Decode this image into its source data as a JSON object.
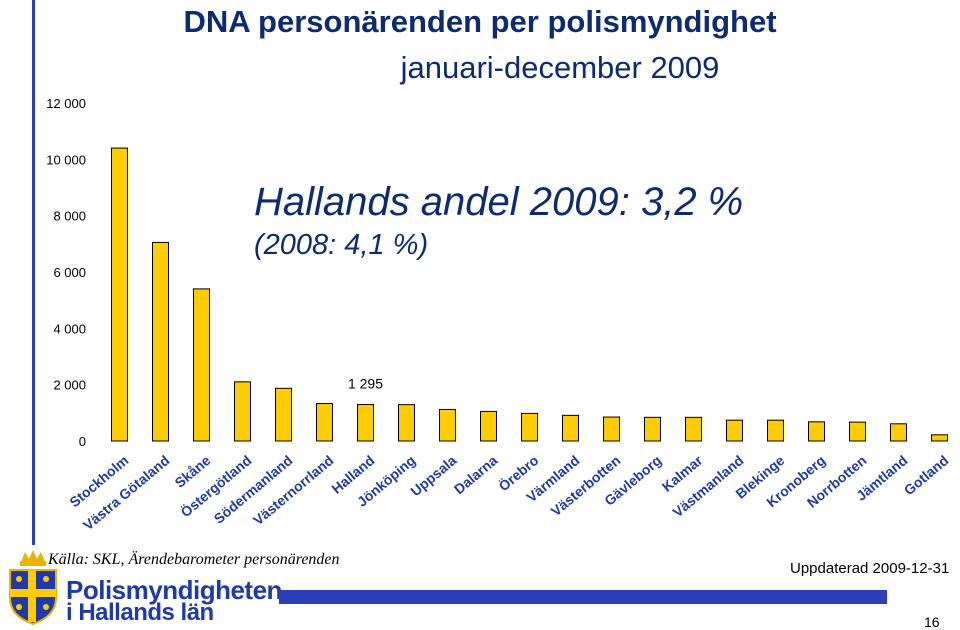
{
  "chart_data": {
    "type": "bar",
    "title": "DNA personärenden per polismyndighet",
    "subtitle": "januari-december 2009",
    "categories": [
      "Stockholm",
      "Västra Götaland",
      "Skåne",
      "Östergötland",
      "Södermanland",
      "Västernorrland",
      "Halland",
      "Jönköping",
      "Uppsala",
      "Dalarna",
      "Örebro",
      "Värmland",
      "Västerbotten",
      "Gävleborg",
      "Kalmar",
      "Västmanland",
      "Blekinge",
      "Kronoberg",
      "Norrbotten",
      "Jämtland",
      "Gotland"
    ],
    "values": [
      10400,
      7050,
      5400,
      2100,
      1870,
      1330,
      1295,
      1290,
      1120,
      1050,
      980,
      910,
      850,
      840,
      840,
      740,
      740,
      680,
      670,
      610,
      220
    ],
    "ylim": [
      0,
      12000
    ],
    "yticks": [
      "0",
      "2 000",
      "4 000",
      "6 000",
      "8 000",
      "10 000",
      "12 000"
    ],
    "data_label": {
      "index": 6,
      "text": "1 295"
    },
    "bar_color": "#ffcc00",
    "grid": false
  },
  "annotation": {
    "line1": "Hallands andel 2009: 3,2 %",
    "line2": "(2008: 4,1 %)"
  },
  "footer": {
    "source": "Källa: SKL, Ärendebarometer personärenden",
    "updated": "Uppdaterad 2009-12-31",
    "page": "16"
  },
  "logo": {
    "line1": "Polismyndigheten",
    "line2": "i Hallands län"
  }
}
